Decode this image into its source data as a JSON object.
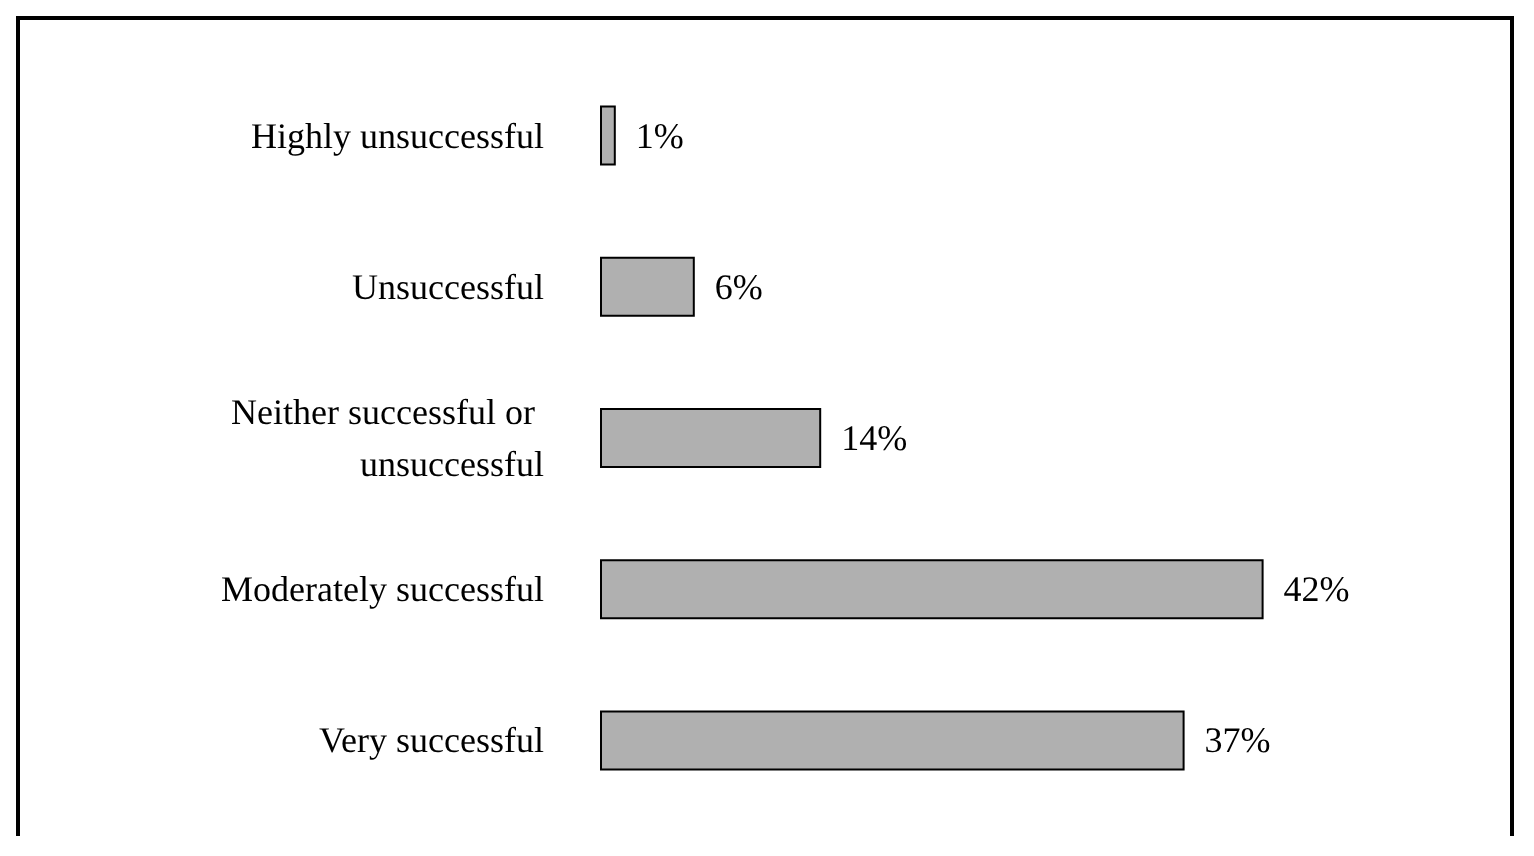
{
  "chart_data": {
    "type": "bar",
    "orientation": "horizontal",
    "categories": [
      "Highly unsuccessful",
      "Unsuccessful",
      "Neither successful or unsuccessful",
      "Moderately successful",
      "Very successful"
    ],
    "values": [
      1,
      6,
      14,
      42,
      37
    ],
    "value_labels": [
      "1%",
      "6%",
      "14%",
      "42%",
      "37%"
    ],
    "color": "#b0b0b0",
    "grid": false
  }
}
